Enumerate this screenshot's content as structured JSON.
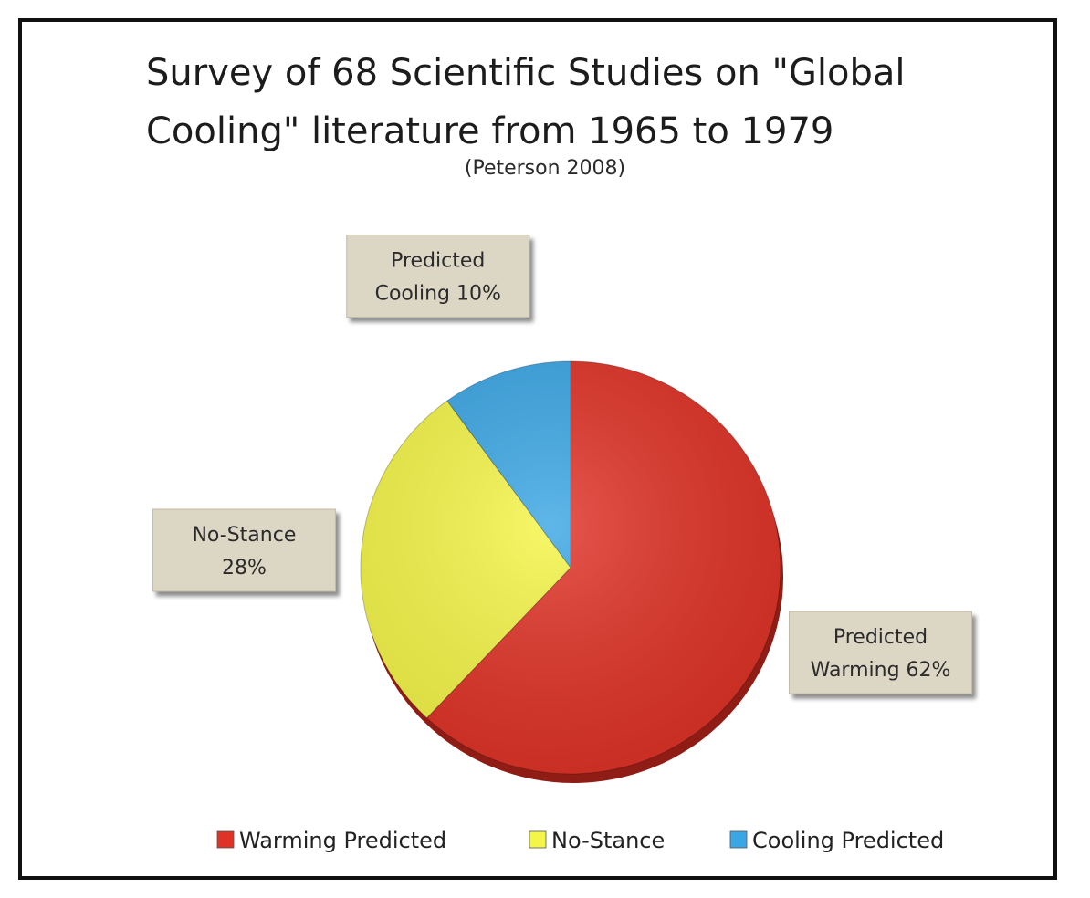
{
  "title": "Survey of 68 Scientific Studies on \"Global Cooling\" literature  from 1965 to 1979",
  "subtitle": "(Peterson 2008)",
  "chart_data": {
    "type": "pie",
    "title": "Survey of 68 Scientific Studies on \"Global Cooling\" literature  from 1965 to 1979",
    "subtitle": "(Peterson 2008)",
    "start_angle": "12 o'clock",
    "direction": "clockwise",
    "legend_position": "bottom",
    "slices": [
      {
        "name": "Warming Predicted",
        "value": 62,
        "color": "#e03226",
        "label_lines": [
          "Predicted",
          "Warming 62%"
        ]
      },
      {
        "name": "No-Stance",
        "value": 28,
        "color": "#f5f548",
        "label_lines": [
          "No-Stance",
          "28%"
        ]
      },
      {
        "name": "Cooling Predicted",
        "value": 10,
        "color": "#3ba6e4",
        "label_lines": [
          "Predicted",
          "Cooling 10%"
        ]
      }
    ]
  }
}
